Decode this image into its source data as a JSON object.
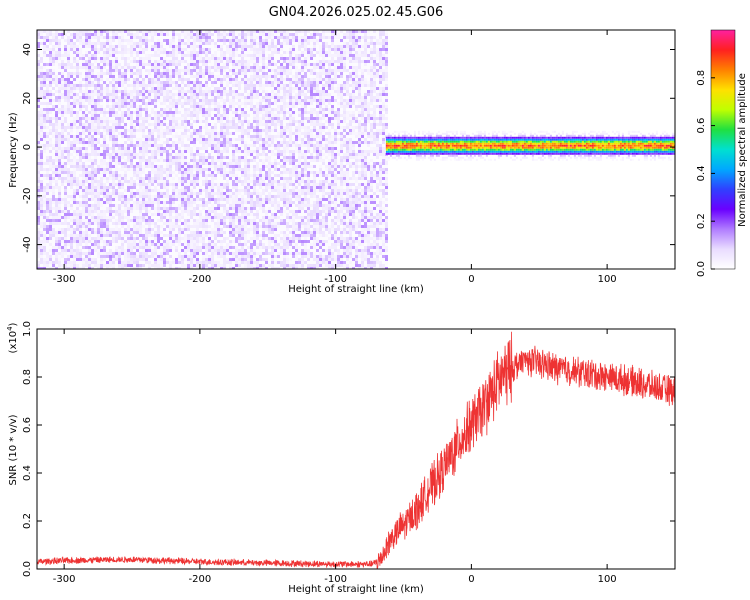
{
  "figure": {
    "title": "GN04.2026.025.02.45.G06"
  },
  "colors": {
    "snr_line": "#ee3333",
    "frame": "#000000",
    "colormap": [
      "#ffffff",
      "#e9dcff",
      "#b07cff",
      "#6a00ff",
      "#3040ff",
      "#00a8ff",
      "#00e0d0",
      "#20e040",
      "#c0ff00",
      "#ffe000",
      "#ff8000",
      "#ff2020",
      "#ff20a0"
    ]
  },
  "chart_data": [
    {
      "type": "heatmap",
      "title": "",
      "xlabel": "Height of straight line (km)",
      "ylabel": "Frequency (Hz)",
      "xlim": [
        -320,
        150
      ],
      "ylim": [
        -50,
        48
      ],
      "xticks": [
        -300,
        -200,
        -100,
        0,
        100
      ],
      "yticks": [
        -40,
        -20,
        0,
        20,
        40
      ],
      "colorbar": {
        "label": "Normalized spectral amplitude",
        "range": [
          0,
          1
        ],
        "ticks": [
          "0.0",
          "0.2",
          "0.4",
          "0.6",
          "0.8"
        ]
      },
      "regions": [
        {
          "name": "broadband noise",
          "x_range": [
            -320,
            -63
          ],
          "y_range": [
            -50,
            48
          ],
          "amplitude_range": [
            0.0,
            0.12
          ]
        },
        {
          "name": "narrow line",
          "x_range": [
            -63,
            150
          ],
          "center_frequency": 0.5,
          "halfwidth": 3,
          "peak_amplitude": 0.95
        }
      ]
    },
    {
      "type": "line",
      "title": "",
      "xlabel": "Height of straight line (km)",
      "ylabel": "SNR (10 * v/v)",
      "y_multiplier": "(x10",
      "y_multiplier_exp": "4",
      "xlim": [
        -320,
        150
      ],
      "ylim": [
        0,
        1.0
      ],
      "xticks": [
        -300,
        -200,
        -100,
        0,
        100
      ],
      "yticks": [
        "0.0",
        "0.2",
        "0.4",
        "0.6",
        "0.8",
        "1.0"
      ],
      "series": [
        {
          "x": [
            -320,
            -300,
            -250,
            -200,
            -150,
            -100,
            -75,
            -68,
            -60,
            -50,
            -40,
            -30,
            -20,
            -10,
            0,
            10,
            20,
            30,
            40,
            50,
            60,
            80,
            100,
            120,
            140,
            150
          ],
          "y": [
            0.03,
            0.035,
            0.04,
            0.03,
            0.025,
            0.02,
            0.02,
            0.03,
            0.12,
            0.18,
            0.25,
            0.34,
            0.42,
            0.52,
            0.6,
            0.68,
            0.78,
            0.84,
            0.87,
            0.86,
            0.84,
            0.82,
            0.8,
            0.78,
            0.75,
            0.74
          ]
        }
      ]
    }
  ]
}
